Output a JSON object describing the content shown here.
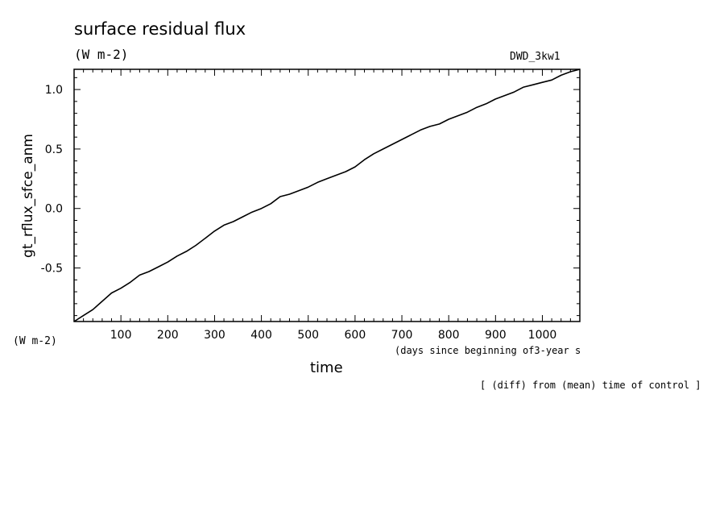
{
  "header": {
    "title": "surface residual flux",
    "units": "(W m-2)",
    "run": "DWD_3kw1"
  },
  "footer": {
    "y_units": "(W m-2)",
    "x_units": "(days since beginning of3-year s",
    "x_title": "time",
    "note": "[ (diff) from (mean) time of control ]"
  },
  "chart_data": {
    "type": "line",
    "title": "surface residual flux",
    "xlabel": "time",
    "ylabel": "gt_rflux_sfce_anm",
    "xlim": [
      0,
      1080
    ],
    "ylim": [
      -0.95,
      1.17
    ],
    "x_ticks": [
      100,
      200,
      300,
      400,
      500,
      600,
      700,
      800,
      900,
      1000
    ],
    "y_ticks": [
      -0.5,
      0.0,
      0.5,
      1.0
    ],
    "y_tick_labels": [
      "-0.5",
      "0.0",
      "0.5",
      "1.0"
    ],
    "grid": false,
    "color": "#000000",
    "series": [
      {
        "x": [
          0,
          20,
          40,
          60,
          80,
          100,
          120,
          140,
          160,
          180,
          200,
          220,
          240,
          260,
          280,
          300,
          320,
          340,
          360,
          380,
          400,
          420,
          440,
          460,
          480,
          500,
          520,
          540,
          560,
          580,
          600,
          620,
          640,
          660,
          680,
          700,
          720,
          740,
          760,
          780,
          800,
          820,
          840,
          860,
          880,
          900,
          920,
          940,
          960,
          980,
          1000,
          1020,
          1040,
          1060,
          1080
        ],
        "values": [
          -0.95,
          -0.9,
          -0.85,
          -0.78,
          -0.71,
          -0.67,
          -0.62,
          -0.56,
          -0.53,
          -0.49,
          -0.45,
          -0.4,
          -0.36,
          -0.31,
          -0.25,
          -0.19,
          -0.14,
          -0.11,
          -0.07,
          -0.03,
          0.0,
          0.04,
          0.1,
          0.12,
          0.15,
          0.18,
          0.22,
          0.25,
          0.28,
          0.31,
          0.35,
          0.41,
          0.46,
          0.5,
          0.54,
          0.58,
          0.62,
          0.66,
          0.69,
          0.71,
          0.75,
          0.78,
          0.81,
          0.85,
          0.88,
          0.92,
          0.95,
          0.98,
          1.02,
          1.04,
          1.06,
          1.08,
          1.12,
          1.15,
          1.17
        ]
      }
    ]
  }
}
